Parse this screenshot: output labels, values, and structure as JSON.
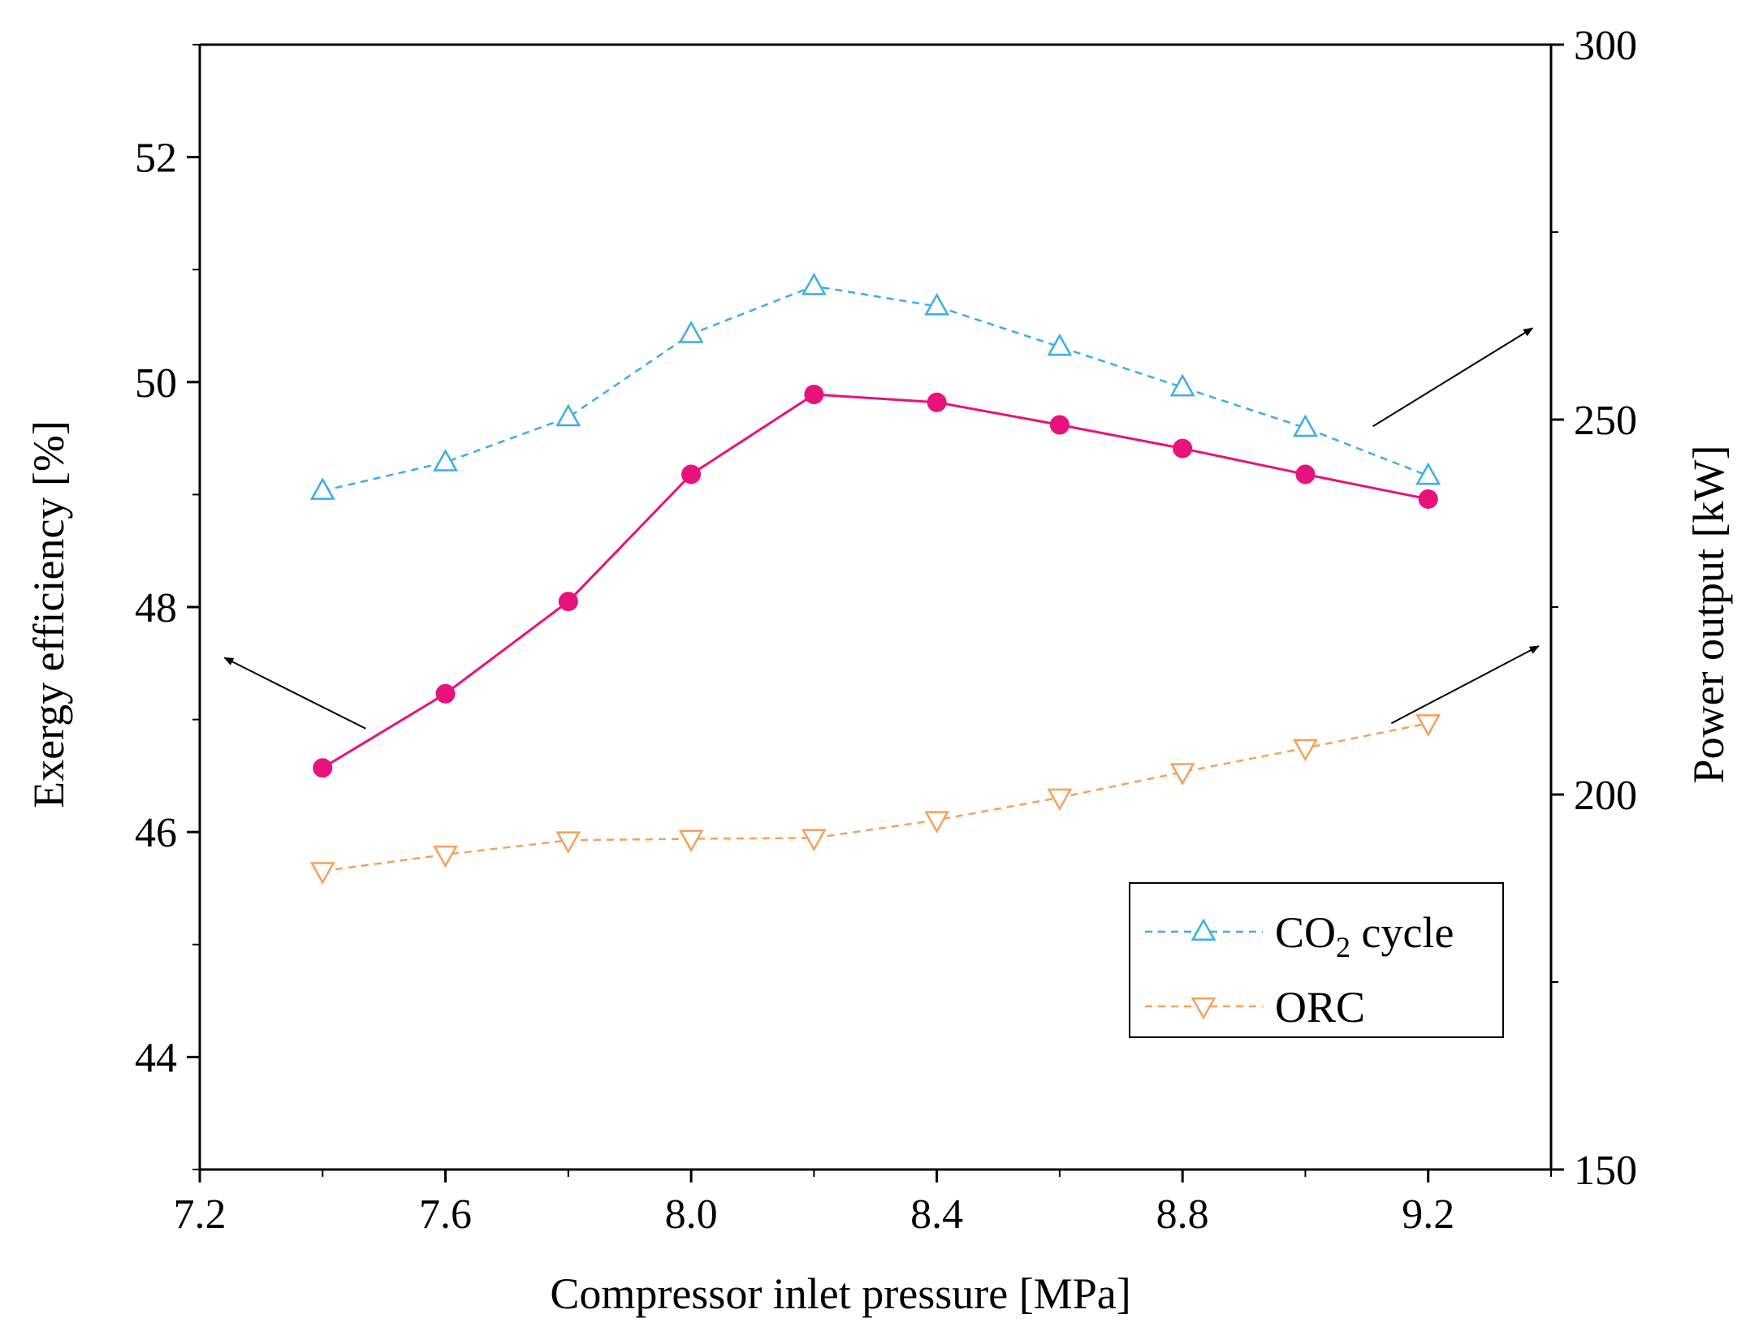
{
  "chart_data": {
    "type": "line",
    "title": "",
    "xlabel": "Compressor inlet pressure [MPa]",
    "ylabel_left": "Exergy efficiency [%]",
    "ylabel_right": "Power output [kW]",
    "xlim": [
      7.2,
      9.4
    ],
    "ylim_left": [
      43,
      53
    ],
    "ylim_right": [
      150,
      300
    ],
    "x_ticks": [
      7.2,
      7.6,
      8.0,
      8.4,
      8.8,
      9.2
    ],
    "x_tick_labels": [
      "7.2",
      "7.6",
      "8.0",
      "8.4",
      "8.8",
      "9.2"
    ],
    "y_left_ticks": [
      44,
      46,
      48,
      50,
      52
    ],
    "y_left_tick_labels": [
      "44",
      "46",
      "48",
      "50",
      "52"
    ],
    "y_right_ticks": [
      150,
      200,
      250,
      300
    ],
    "y_right_tick_labels": [
      "150",
      "200",
      "250",
      "300"
    ],
    "grid": false,
    "legend_position": "lower-right",
    "x": [
      7.4,
      7.6,
      7.8,
      8.0,
      8.2,
      8.4,
      8.6,
      8.8,
      9.0,
      9.2
    ],
    "series": [
      {
        "name": "Exergy efficiency",
        "axis": "left",
        "in_legend": false,
        "color": "#e8127c",
        "marker": "circle",
        "line_style": "solid",
        "values": [
          46.57,
          47.23,
          48.05,
          49.18,
          49.89,
          49.82,
          49.62,
          49.41,
          49.18,
          48.96
        ]
      },
      {
        "name": "CO2 cycle",
        "axis": "right",
        "in_legend": true,
        "legend_main": "CO",
        "legend_sub": "2",
        "legend_rest": " cycle",
        "color": "#3aaee8",
        "marker": "triangle-up",
        "line_style": "dashed",
        "values": [
          240.5,
          244.3,
          250.3,
          261.4,
          267.8,
          265.1,
          259.7,
          254.3,
          248.9,
          242.5
        ]
      },
      {
        "name": "ORC",
        "axis": "right",
        "in_legend": true,
        "legend_main": "ORC",
        "legend_sub": "",
        "legend_rest": "",
        "color": "#f5a15c",
        "marker": "triangle-down",
        "line_style": "dashed",
        "values": [
          189.8,
          192.0,
          193.9,
          194.1,
          194.2,
          196.6,
          199.6,
          203.0,
          206.2,
          209.5
        ]
      }
    ],
    "annotations": [
      {
        "type": "arrow",
        "points_to": "left axis",
        "from": [
          7.47,
          46.92
        ],
        "to": [
          7.24,
          47.55
        ]
      },
      {
        "type": "arrow",
        "points_to": "right axis",
        "from": [
          9.11,
          249.1
        ],
        "to": [
          9.37,
          262.2
        ]
      },
      {
        "type": "arrow",
        "points_to": "right axis",
        "from": [
          9.14,
          209.5
        ],
        "to": [
          9.38,
          219.8
        ]
      }
    ]
  }
}
